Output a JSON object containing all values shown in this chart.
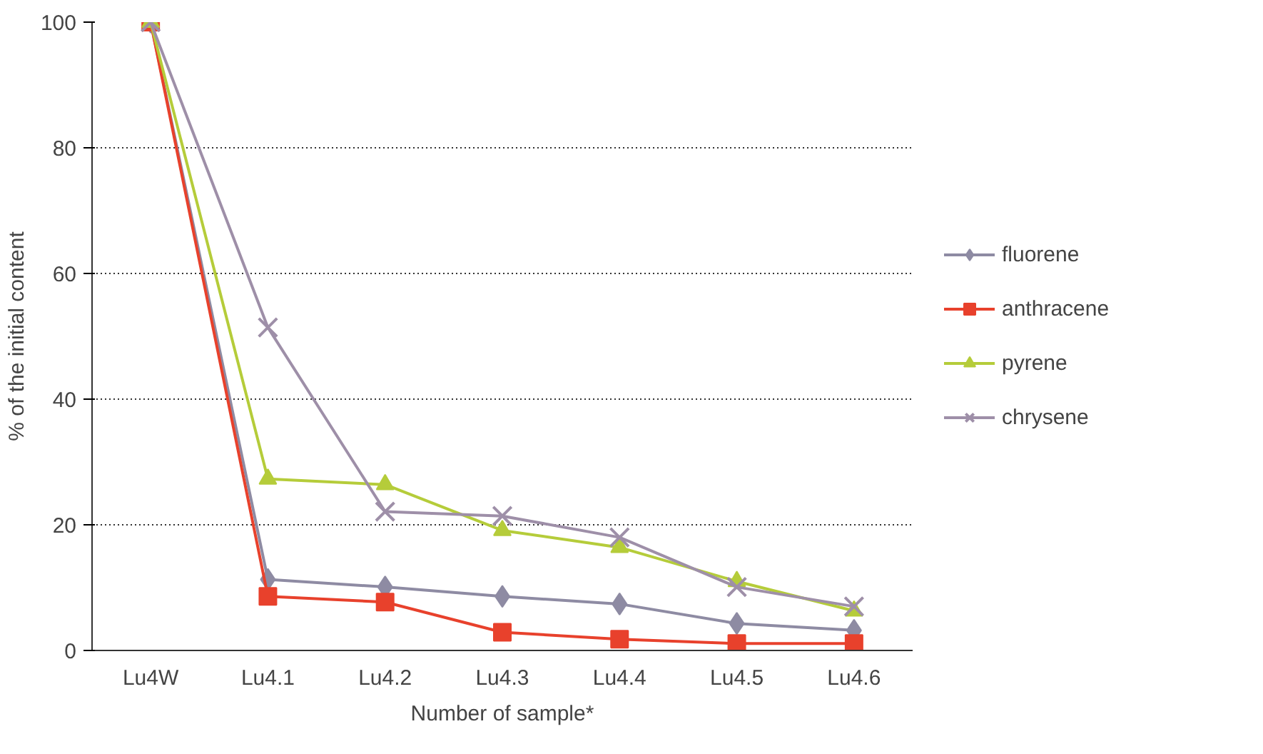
{
  "chart_data": {
    "type": "line",
    "xlabel": "Number of sample*",
    "ylabel": "% of the initial content",
    "categories": [
      "Lu4W",
      "Lu4.1",
      "Lu4.2",
      "Lu4.3",
      "Lu4.4",
      "Lu4.5",
      "Lu4.6"
    ],
    "ylim": [
      0,
      100
    ],
    "yticks": [
      0,
      20,
      40,
      60,
      80,
      100
    ],
    "grid": "y",
    "legend": "right",
    "line_style": "solid",
    "series": [
      {
        "name": "fluorene",
        "color": "#8e8ba3",
        "marker": "diamond",
        "values": [
          100,
          11.3,
          10.1,
          8.6,
          7.4,
          4.3,
          3.2
        ]
      },
      {
        "name": "anthracene",
        "color": "#e8412c",
        "marker": "square",
        "values": [
          100,
          8.6,
          7.7,
          2.9,
          1.8,
          1.1,
          1.1
        ]
      },
      {
        "name": "pyrene",
        "color": "#b5cc3a",
        "marker": "triangle",
        "values": [
          100,
          27.3,
          26.4,
          19.1,
          16.4,
          11.0,
          6.3
        ]
      },
      {
        "name": "chrysene",
        "color": "#9e8fa8",
        "marker": "cross",
        "values": [
          100,
          51.4,
          22.1,
          21.4,
          18.0,
          10.1,
          7.0
        ]
      }
    ]
  }
}
